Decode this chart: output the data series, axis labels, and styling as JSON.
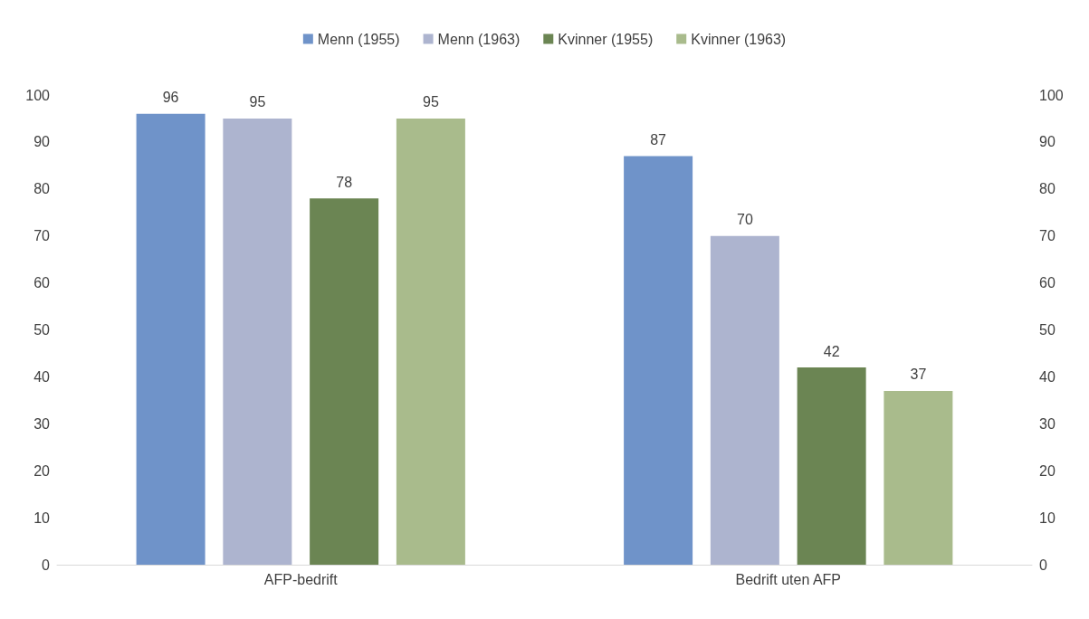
{
  "chart_data": {
    "type": "bar",
    "categories": [
      "AFP-bedrift",
      "Bedrift uten AFP"
    ],
    "series": [
      {
        "name": "Menn (1955)",
        "color": "#6f93c9",
        "values": [
          96,
          87
        ]
      },
      {
        "name": "Menn (1963)",
        "color": "#adb4cf",
        "values": [
          95,
          70
        ]
      },
      {
        "name": "Kvinner (1955)",
        "color": "#6b8553",
        "values": [
          78,
          42
        ]
      },
      {
        "name": "Kvinner (1963)",
        "color": "#a9bb8c",
        "values": [
          95,
          37
        ]
      }
    ],
    "ylim": [
      0,
      100
    ],
    "yticks": [
      0,
      10,
      20,
      30,
      40,
      50,
      60,
      70,
      80,
      90,
      100
    ],
    "y2lim": [
      0,
      100
    ],
    "y2ticks": [
      0,
      10,
      20,
      30,
      40,
      50,
      60,
      70,
      80,
      90,
      100
    ],
    "data_labels": true,
    "grid": false,
    "legend": "top"
  }
}
